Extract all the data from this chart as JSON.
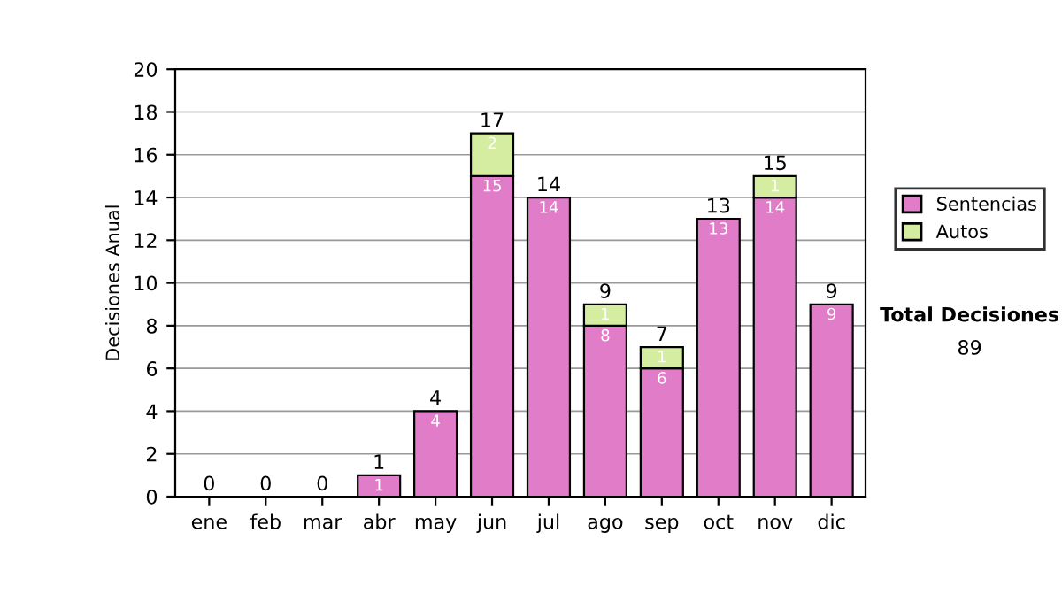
{
  "chart_data": {
    "type": "bar",
    "stacked": true,
    "ylabel": "Decisiones Anual",
    "categories": [
      "ene",
      "feb",
      "mar",
      "abr",
      "may",
      "jun",
      "jul",
      "ago",
      "sep",
      "oct",
      "nov",
      "dic"
    ],
    "series": [
      {
        "name": "Sentencias",
        "color": "#e07cc8",
        "values": [
          0,
          0,
          0,
          1,
          4,
          15,
          14,
          8,
          6,
          13,
          14,
          9
        ],
        "value_labels": [
          null,
          null,
          null,
          "1",
          "4",
          "15",
          "14",
          "8",
          "6",
          "13",
          "14",
          "9"
        ]
      },
      {
        "name": "Autos",
        "color": "#d4eda0",
        "values": [
          0,
          0,
          0,
          0,
          0,
          2,
          0,
          1,
          1,
          0,
          1,
          0
        ],
        "value_labels": [
          null,
          null,
          null,
          null,
          null,
          "2",
          null,
          "1",
          "1",
          null,
          "1",
          null
        ]
      }
    ],
    "totals": [
      "0",
      "0",
      "0",
      "1",
      "4",
      "17",
      "14",
      "9",
      "7",
      "13",
      "15",
      "9"
    ],
    "ylim": [
      0,
      20
    ],
    "yticks": [
      0,
      2,
      4,
      6,
      8,
      10,
      12,
      14,
      16,
      18,
      20
    ],
    "grid": "y",
    "legend": "right",
    "annotations": [
      "Total Decisiones",
      "89"
    ]
  }
}
